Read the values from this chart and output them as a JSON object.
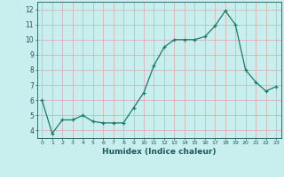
{
  "x": [
    0,
    1,
    2,
    3,
    4,
    5,
    6,
    7,
    8,
    9,
    10,
    11,
    12,
    13,
    14,
    15,
    16,
    17,
    18,
    19,
    20,
    21,
    22,
    23
  ],
  "y": [
    6.0,
    3.8,
    4.7,
    4.7,
    5.0,
    4.6,
    4.5,
    4.5,
    4.5,
    5.5,
    6.5,
    8.3,
    9.5,
    10.0,
    10.0,
    10.0,
    10.2,
    10.9,
    11.9,
    11.0,
    8.0,
    7.2,
    6.6,
    6.9
  ],
  "line_color": "#1a7a6a",
  "marker": "+",
  "marker_size": 3,
  "linewidth": 0.9,
  "xlabel": "Humidex (Indice chaleur)",
  "xlabel_fontsize": 6.5,
  "xlabel_color": "#1a5a5a",
  "bg_color": "#c8eeee",
  "grid_color": "#d8a8a8",
  "tick_color": "#1a5a5a",
  "xlim": [
    -0.5,
    23.5
  ],
  "ylim": [
    3.5,
    12.5
  ],
  "yticks": [
    4,
    5,
    6,
    7,
    8,
    9,
    10,
    11,
    12
  ],
  "xticks": [
    0,
    1,
    2,
    3,
    4,
    5,
    6,
    7,
    8,
    9,
    10,
    11,
    12,
    13,
    14,
    15,
    16,
    17,
    18,
    19,
    20,
    21,
    22,
    23
  ],
  "xtick_labels": [
    "0",
    "1",
    "2",
    "3",
    "4",
    "5",
    "6",
    "7",
    "8",
    "9",
    "10",
    "11",
    "12",
    "13",
    "14",
    "15",
    "16",
    "17",
    "18",
    "19",
    "20",
    "21",
    "22",
    "23"
  ]
}
